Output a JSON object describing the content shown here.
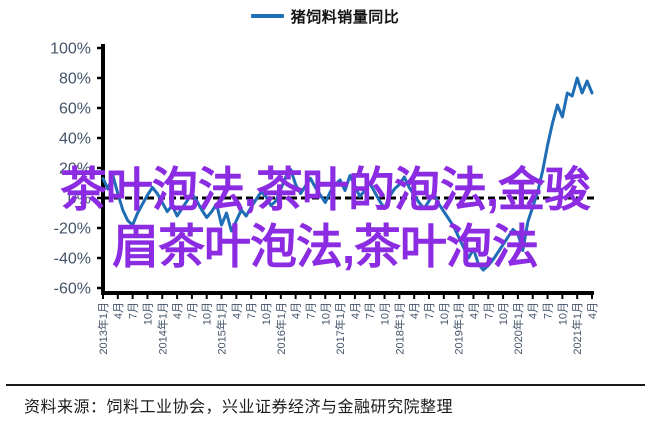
{
  "page": {
    "background": "#ffffff"
  },
  "legend": {
    "label": "猪饲料销量同比",
    "swatch_color": "#1F6EB5"
  },
  "overlay": {
    "lines": [
      "茶叶泡法,茶叶的泡法,金骏",
      "眉茶叶泡法,茶叶泡法"
    ],
    "color": "#8B2BE2"
  },
  "source": {
    "text": "资料来源：饲料工业协会，兴业证券经济与金融研究院整理"
  },
  "chart_data": {
    "type": "line",
    "title": "猪饲料销量同比",
    "ylabel": "",
    "xlabel": "",
    "ylim": [
      -60,
      100
    ],
    "y_ticks": [
      100,
      80,
      60,
      40,
      20,
      0,
      -20,
      -40,
      -60
    ],
    "y_tick_suffix": "%",
    "zero_line_style": "dashed-black",
    "legend_position": "top-center",
    "grid": false,
    "x_tick_labels": [
      "2013年1月",
      "4月",
      "7月",
      "10月",
      "2014年1月",
      "4月",
      "7月",
      "10月",
      "2015年1月",
      "4月",
      "7月",
      "10月",
      "2016年1月",
      "4月",
      "7月",
      "10月",
      "2017年1月",
      "4月",
      "7月",
      "10月",
      "2018年1月",
      "4月",
      "7月",
      "10月",
      "2019年1月",
      "4月",
      "7月",
      "10月",
      "2020年1月",
      "4月",
      "7月",
      "10月",
      "2021年1月",
      "4月"
    ],
    "x_tick_every_n_months": 3,
    "series": [
      {
        "name": "猪饲料销量同比",
        "color": "#1F6EB5",
        "start": "2013年1月",
        "end": "2021年4月",
        "frequency": "monthly",
        "unit": "%",
        "values": [
          13,
          6,
          15,
          3,
          -8,
          -15,
          -18,
          -10,
          -4,
          2,
          7,
          3,
          -3,
          -9,
          -5,
          -12,
          -7,
          -2,
          3,
          -2,
          -8,
          -13,
          -9,
          -4,
          -18,
          -10,
          -22,
          -15,
          -8,
          -12,
          -6,
          -1,
          4,
          1,
          -5,
          -2,
          6,
          14,
          19,
          9,
          3,
          8,
          13,
          7,
          2,
          -3,
          4,
          9,
          12,
          5,
          15,
          8,
          1,
          5,
          10,
          4,
          -2,
          -7,
          1,
          6,
          9,
          14,
          7,
          2,
          -3,
          -7,
          -2,
          3,
          -4,
          -9,
          -14,
          -19,
          -26,
          -33,
          -40,
          -34,
          -44,
          -48,
          -45,
          -41,
          -36,
          -31,
          -26,
          -21,
          -24,
          -35,
          -16,
          -6,
          4,
          18,
          35,
          50,
          62,
          54,
          70,
          68,
          80,
          70,
          78,
          70
        ]
      }
    ],
    "axis_color": "#000000",
    "tick_label_color": "#44546A"
  }
}
